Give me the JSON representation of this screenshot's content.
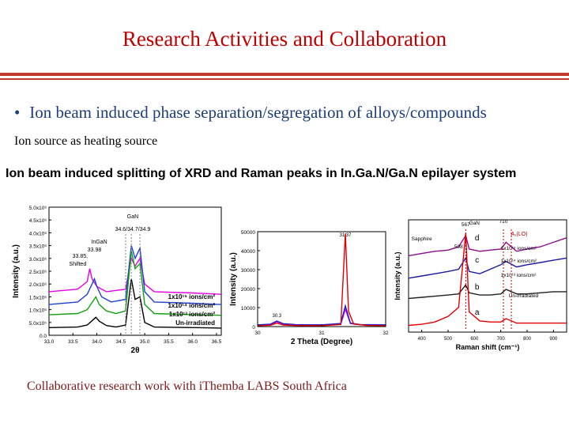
{
  "slide": {
    "title": "Research Activities and Collaboration",
    "bullet": "Ion beam induced phase separation/segregation of alloys/compounds",
    "subtitle": "Ion source as heating source",
    "heading": "Ion beam induced splitting of XRD and Raman peaks in In.Ga.N/Ga.N epilayer system",
    "footer": "Collaborative research work with iThemba LABS South Africa"
  },
  "chart_data": [
    {
      "type": "line",
      "ylabel": "Intensity (a.u.)",
      "xlabel": "2θ",
      "x_ticks": [
        "33.0",
        "33.5",
        "34.0",
        "34.5",
        "35.0",
        "35.5",
        "36.0",
        "36.5"
      ],
      "y_ticks": [
        "0.0",
        "5.0x10⁵",
        "1.0x10⁶",
        "1.5x10⁶",
        "2.0x10⁶",
        "2.5x10⁶",
        "3.0x10⁶",
        "3.5x10⁶",
        "4.0x10⁶",
        "4.5x10⁶",
        "5.0x10⁶"
      ],
      "xlim": [
        33.0,
        36.6
      ],
      "ylim": [
        0,
        5000000
      ],
      "annotations": [
        "GaN",
        "34.6",
        "34.7",
        "34.9",
        "InGaN",
        "33.85",
        "33.98",
        "Shifted"
      ],
      "series": [
        {
          "name": "1x10¹⁵ ions/cm²",
          "color": "#e600e6",
          "x": [
            33.0,
            33.6,
            33.8,
            33.85,
            33.9,
            34.0,
            34.2,
            34.6,
            34.72,
            34.8,
            34.9,
            35.0,
            35.2,
            36.0,
            36.6
          ],
          "y": [
            1700000,
            1800000,
            2100000,
            2600000,
            2200000,
            1900000,
            1700000,
            1800000,
            3000000,
            2700000,
            3000000,
            2000000,
            1700000,
            1650000,
            1600000
          ]
        },
        {
          "name": "1x10¹⁴ ions/cm²",
          "color": "#2040d0",
          "x": [
            33.0,
            33.6,
            33.8,
            33.95,
            34.0,
            34.1,
            34.3,
            34.6,
            34.72,
            34.8,
            34.9,
            35.0,
            35.2,
            36.0,
            36.6
          ],
          "y": [
            1200000,
            1300000,
            1600000,
            2200000,
            1900000,
            1500000,
            1300000,
            1400000,
            3500000,
            3000000,
            3400000,
            1700000,
            1300000,
            1250000,
            1200000
          ]
        },
        {
          "name": "1x10¹³ ions/cm²",
          "color": "#10a010",
          "x": [
            33.0,
            33.6,
            33.8,
            33.98,
            34.05,
            34.2,
            34.4,
            34.6,
            34.72,
            34.8,
            34.9,
            35.0,
            35.2,
            36.0,
            36.6
          ],
          "y": [
            800000,
            850000,
            1000000,
            1500000,
            1200000,
            950000,
            850000,
            950000,
            3300000,
            2600000,
            2800000,
            1200000,
            850000,
            800000,
            780000
          ]
        },
        {
          "name": "Un-irradiated",
          "color": "#000000",
          "x": [
            33.0,
            33.6,
            33.8,
            33.98,
            34.05,
            34.2,
            34.4,
            34.6,
            34.72,
            34.8,
            34.9,
            35.0,
            35.2,
            36.0,
            36.6
          ],
          "y": [
            300000,
            320000,
            400000,
            700000,
            550000,
            380000,
            320000,
            400000,
            2200000,
            1400000,
            1500000,
            500000,
            320000,
            300000,
            280000
          ]
        }
      ]
    },
    {
      "type": "line",
      "xlabel": "2 Theta (Degree)",
      "ylabel": "Intensity (a.u.)",
      "x_ticks": [
        "30",
        "31",
        "32"
      ],
      "y_ticks": [
        "0",
        "10000",
        "20000",
        "30000",
        "40000",
        "50000"
      ],
      "xlim": [
        30,
        32
      ],
      "ylim": [
        0,
        55000
      ],
      "annotations": [
        "30.3",
        "31.37"
      ],
      "series": [
        {
          "name": "",
          "color": "#e000e0",
          "x": [
            30.0,
            30.2,
            30.3,
            30.4,
            30.6,
            31.0,
            31.3,
            31.37,
            31.45,
            31.6,
            32.0
          ],
          "y": [
            800,
            1200,
            2800,
            1500,
            1000,
            900,
            1500,
            10000,
            1800,
            1000,
            900
          ]
        },
        {
          "name": "",
          "color": "#2020c0",
          "x": [
            30.0,
            30.2,
            30.3,
            30.4,
            30.6,
            31.0,
            31.3,
            31.37,
            31.45,
            31.6,
            32.0
          ],
          "y": [
            1000,
            1400,
            3200,
            1700,
            1100,
            1000,
            1800,
            12000,
            2000,
            1200,
            1000
          ]
        },
        {
          "name": "",
          "color": "#e00000",
          "x": [
            30.0,
            30.2,
            30.3,
            30.4,
            30.6,
            31.0,
            31.3,
            31.37,
            31.42,
            31.5,
            31.7,
            32.0
          ],
          "y": [
            500,
            800,
            2000,
            900,
            600,
            500,
            1200,
            54000,
            9000,
            1500,
            700,
            500
          ]
        }
      ]
    },
    {
      "type": "line",
      "xlabel": "Raman shift (cm⁻¹)",
      "ylabel": "Intensity (a.u.)",
      "x_ticks": [
        "400",
        "500",
        "600",
        "700",
        "800",
        "900"
      ],
      "xlim": [
        350,
        950
      ],
      "ylim": [
        0,
        100
      ],
      "annotations": [
        "Sapphire",
        "567",
        "GaN",
        "710",
        "A₁(LO)",
        "508",
        "d",
        "c",
        "b",
        "a",
        "1x10¹⁵ ions/cm²",
        "1x10¹⁴ ions/cm²",
        "1x10¹³ ions/cm²",
        "Un-irradiated"
      ],
      "series": [
        {
          "name": "d",
          "color": "#8a0d8a",
          "x": [
            350,
            400,
            450,
            500,
            540,
            567,
            580,
            620,
            660,
            700,
            720,
            760,
            800,
            850,
            900,
            950
          ],
          "y": [
            68,
            70,
            72,
            73,
            76,
            86,
            74,
            72,
            73,
            74,
            80,
            72,
            74,
            76,
            80,
            84
          ]
        },
        {
          "name": "c",
          "color": "#1a1aa0",
          "x": [
            350,
            400,
            450,
            500,
            540,
            567,
            580,
            620,
            660,
            700,
            720,
            760,
            800,
            850,
            900,
            950
          ],
          "y": [
            48,
            50,
            52,
            54,
            56,
            66,
            54,
            52,
            56,
            60,
            63,
            58,
            60,
            62,
            64,
            66
          ]
        },
        {
          "name": "b",
          "color": "#202020",
          "x": [
            350,
            400,
            450,
            500,
            540,
            567,
            580,
            620,
            660,
            700,
            720,
            760,
            800,
            850,
            900,
            950
          ],
          "y": [
            30,
            31,
            32,
            33,
            34,
            42,
            35,
            33,
            33,
            34,
            38,
            34,
            34,
            35,
            36,
            36
          ]
        },
        {
          "name": "a",
          "color": "#e00000",
          "x": [
            350,
            400,
            450,
            500,
            540,
            567,
            580,
            620,
            660,
            700,
            720,
            760,
            800,
            850,
            900,
            950
          ],
          "y": [
            6,
            7,
            9,
            14,
            22,
            88,
            18,
            10,
            9,
            9,
            12,
            8,
            8,
            8,
            8,
            8
          ]
        }
      ]
    }
  ]
}
